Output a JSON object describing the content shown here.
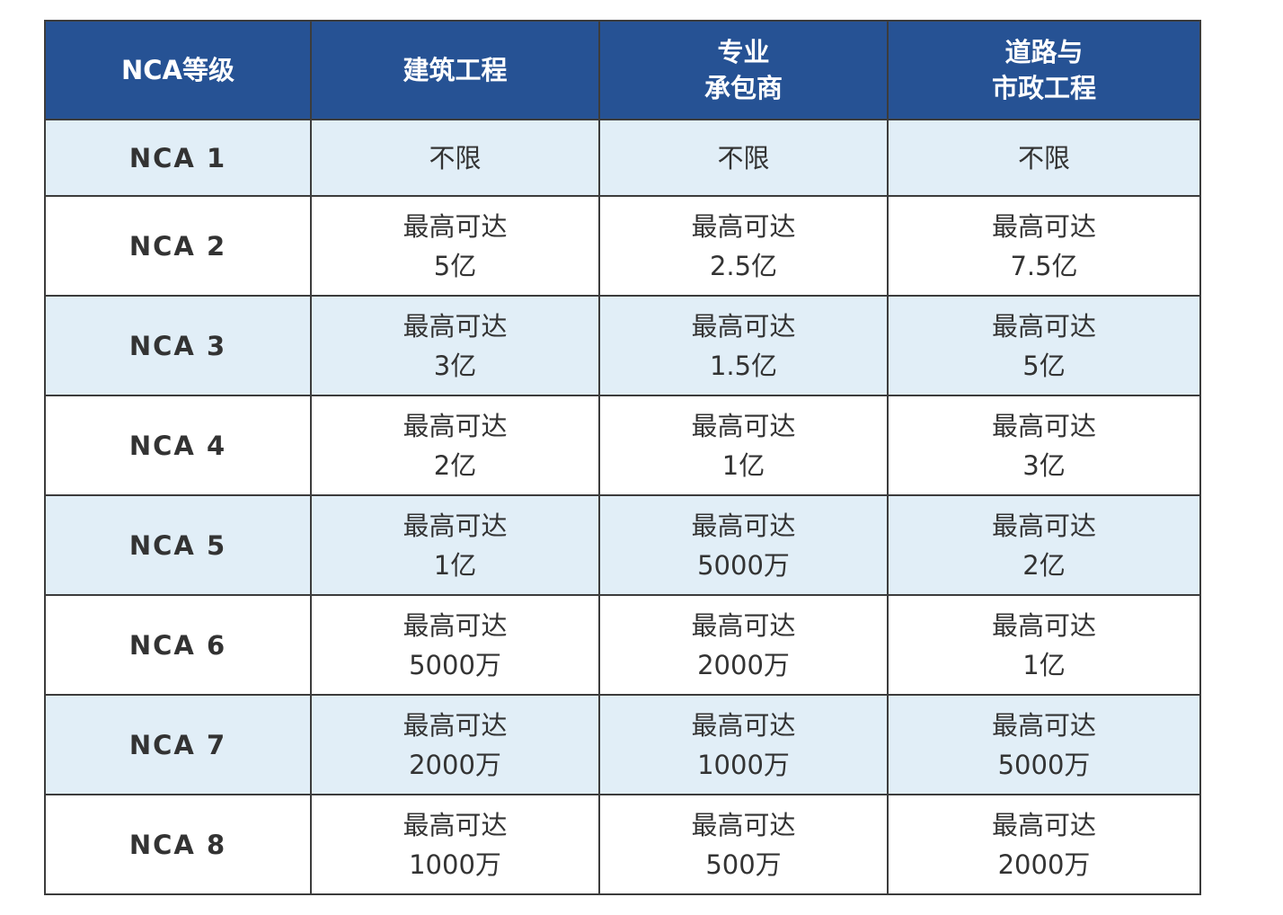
{
  "header": {
    "level": "NCA等级",
    "columns": [
      [
        "建筑工程"
      ],
      [
        "专业",
        "承包商"
      ],
      [
        "道路与",
        "市政工程"
      ]
    ]
  },
  "rows": [
    {
      "level": "NCA 1",
      "cells": [
        [
          "不限"
        ],
        [
          "不限"
        ],
        [
          "不限"
        ]
      ]
    },
    {
      "level": "NCA 2",
      "cells": [
        [
          "最高可达",
          "5亿"
        ],
        [
          "最高可达",
          "2.5亿"
        ],
        [
          "最高可达",
          "7.5亿"
        ]
      ]
    },
    {
      "level": "NCA 3",
      "cells": [
        [
          "最高可达",
          "3亿"
        ],
        [
          "最高可达",
          "1.5亿"
        ],
        [
          "最高可达",
          "5亿"
        ]
      ]
    },
    {
      "level": "NCA 4",
      "cells": [
        [
          "最高可达",
          "2亿"
        ],
        [
          "最高可达",
          "1亿"
        ],
        [
          "最高可达",
          "3亿"
        ]
      ]
    },
    {
      "level": "NCA 5",
      "cells": [
        [
          "最高可达",
          "1亿"
        ],
        [
          "最高可达",
          "5000万"
        ],
        [
          "最高可达",
          "2亿"
        ]
      ]
    },
    {
      "level": "NCA 6",
      "cells": [
        [
          "最高可达",
          "5000万"
        ],
        [
          "最高可达",
          "2000万"
        ],
        [
          "最高可达",
          "1亿"
        ]
      ]
    },
    {
      "level": "NCA 7",
      "cells": [
        [
          "最高可达",
          "2000万"
        ],
        [
          "最高可达",
          "1000万"
        ],
        [
          "最高可达",
          "5000万"
        ]
      ]
    },
    {
      "level": "NCA 8",
      "cells": [
        [
          "最高可达",
          "1000万"
        ],
        [
          "最高可达",
          "500万"
        ],
        [
          "最高可达",
          "2000万"
        ]
      ]
    }
  ],
  "colors": {
    "header_bg": "#265294",
    "alt_row_bg": "#e1eef7",
    "border": "#3c3c3c",
    "text": "#333333"
  }
}
